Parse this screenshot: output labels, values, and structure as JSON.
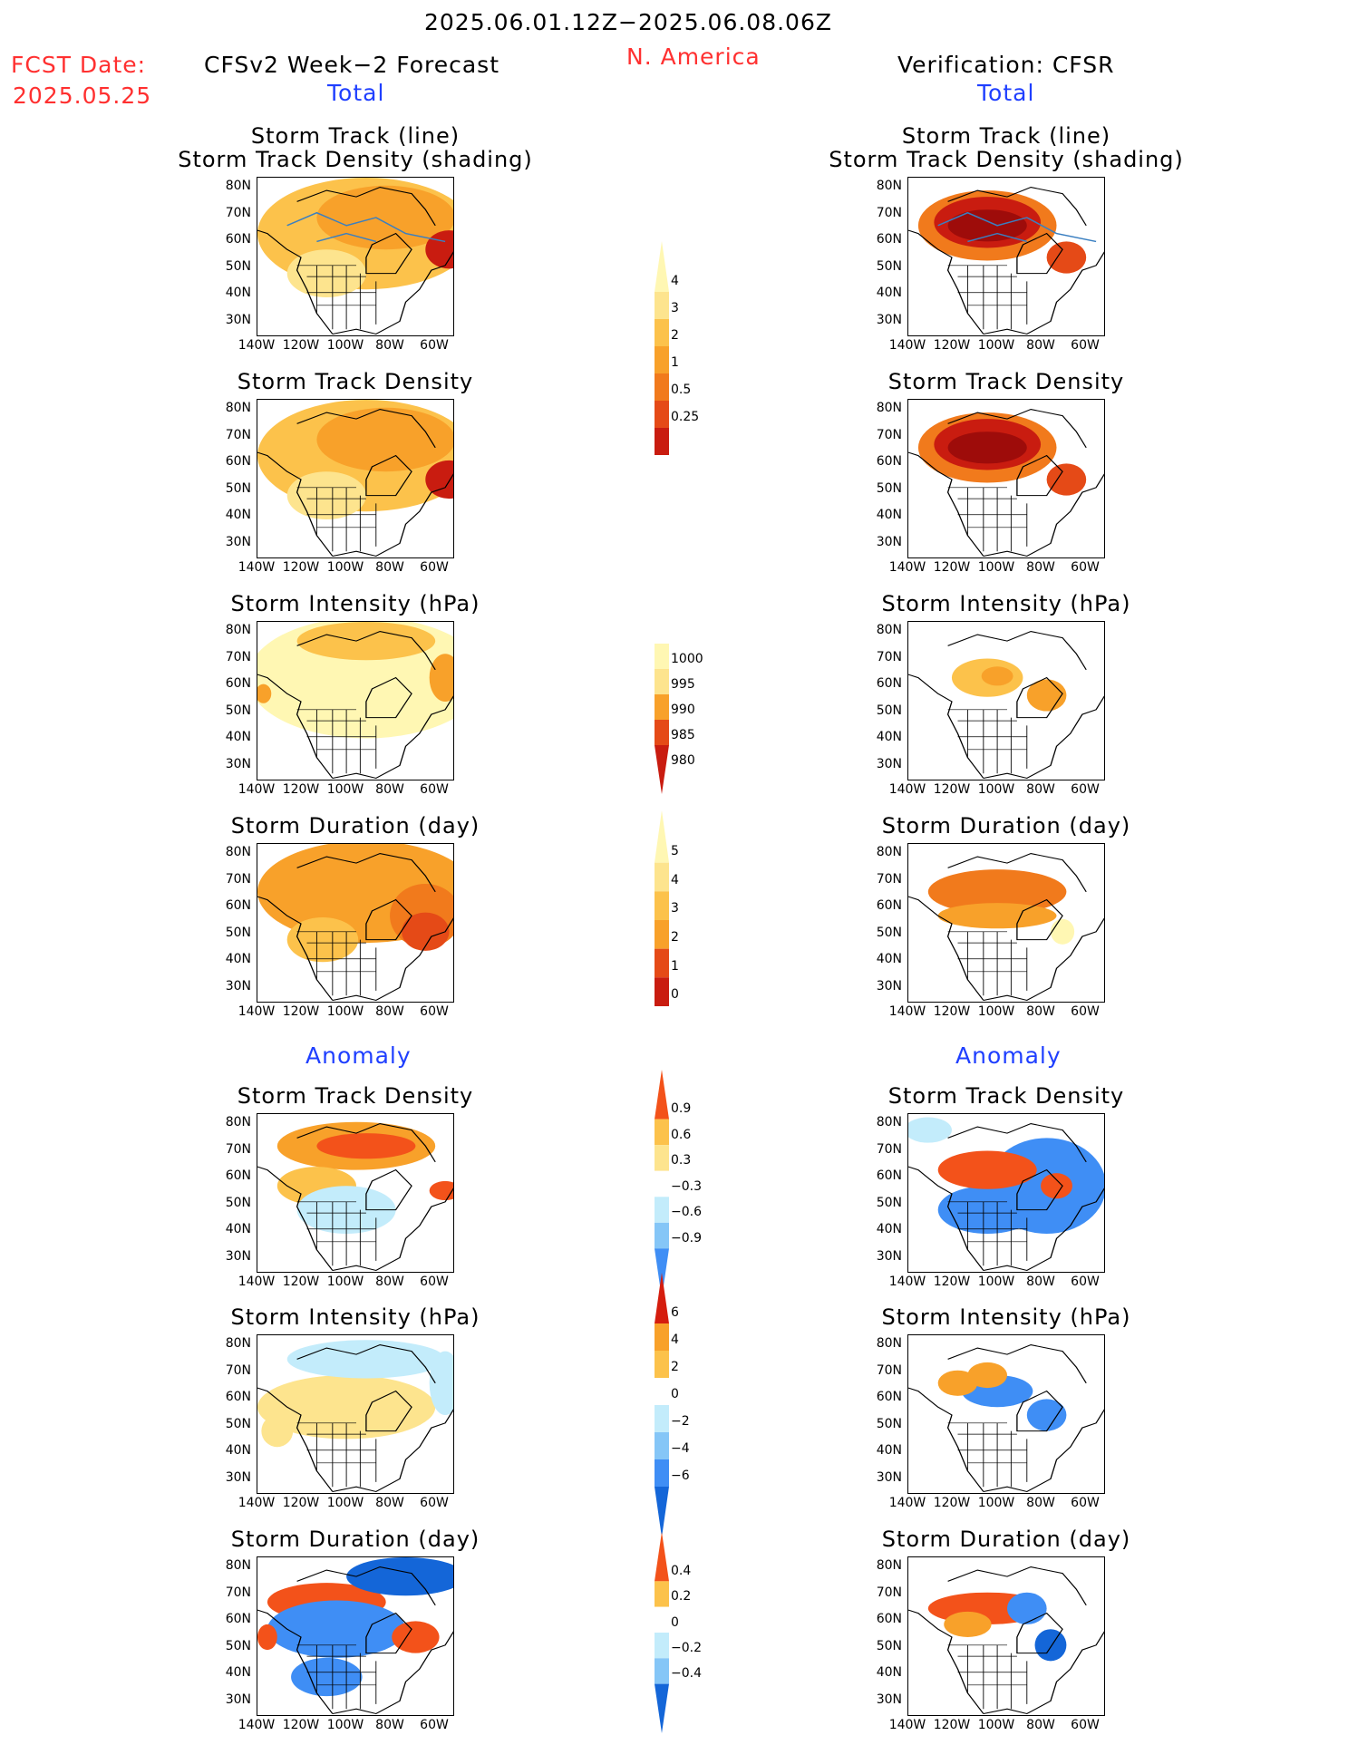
{
  "header": {
    "period": "2025.06.01.12Z−2025.06.08.06Z",
    "region": "N. America",
    "fcst_label": "FCST Date:",
    "fcst_date": "2025.05.25",
    "left_title": "CFSv2 Week−2 Forecast",
    "right_title": "Verification: CFSR",
    "total_label": "Total",
    "anomaly_label": "Anomaly"
  },
  "axes": {
    "lat_ticks": [
      "80N",
      "70N",
      "60N",
      "50N",
      "40N",
      "30N"
    ],
    "lon_ticks": [
      "140W",
      "120W",
      "100W",
      "80W",
      "60W"
    ]
  },
  "colors": {
    "total": [
      "#fff7b3",
      "#fde48e",
      "#fcc24b",
      "#f8a12a",
      "#f17a1c",
      "#e54a17",
      "#c91c10",
      "#9e0c0a"
    ],
    "anomaly": [
      "#1466d8",
      "#3f8ef5",
      "#85c6f7",
      "#c3ecfb",
      "#ffffff",
      "#fde48e",
      "#fcc24b",
      "#f8a12a",
      "#f3521a",
      "#d51d0e"
    ]
  },
  "chart_data": [
    {
      "type": "heatmap",
      "name": "forecast-total-track",
      "title": "Storm Track (line)",
      "subtitle": "Storm Track Density (shading)",
      "panel": "CFSv2 Week-2 Forecast / Total",
      "pattern": "broad moderate density over Canada 45N-75N, max near 50N 55W"
    },
    {
      "type": "heatmap",
      "name": "forecast-total-density",
      "title": "Storm Track Density",
      "panel": "CFSv2 Week-2 Forecast / Total"
    },
    {
      "type": "heatmap",
      "name": "forecast-total-intensity",
      "title": "Storm Intensity (hPa)",
      "panel": "CFSv2 Week-2 Forecast / Total"
    },
    {
      "type": "heatmap",
      "name": "forecast-total-duration",
      "title": "Storm Duration (day)",
      "panel": "CFSv2 Week-2 Forecast / Total"
    },
    {
      "type": "heatmap",
      "name": "forecast-anom-density",
      "title": "Storm Track Density",
      "panel": "CFSv2 Week-2 Forecast / Anomaly"
    },
    {
      "type": "heatmap",
      "name": "forecast-anom-intensity",
      "title": "Storm Intensity (hPa)",
      "panel": "CFSv2 Week-2 Forecast / Anomaly"
    },
    {
      "type": "heatmap",
      "name": "forecast-anom-duration",
      "title": "Storm Duration (day)",
      "panel": "CFSv2 Week-2 Forecast / Anomaly"
    },
    {
      "type": "heatmap",
      "name": "verif-total-track",
      "title": "Storm Track (line)",
      "subtitle": "Storm Track Density (shading)",
      "panel": "Verification: CFSR / Total",
      "pattern": "strong max centred near 60N 100W and secondary near 47N 62W"
    },
    {
      "type": "heatmap",
      "name": "verif-total-density",
      "title": "Storm Track Density",
      "panel": "Verification: CFSR / Total"
    },
    {
      "type": "heatmap",
      "name": "verif-total-intensity",
      "title": "Storm Intensity (hPa)",
      "panel": "Verification: CFSR / Total"
    },
    {
      "type": "heatmap",
      "name": "verif-total-duration",
      "title": "Storm Duration (day)",
      "panel": "Verification: CFSR / Total"
    },
    {
      "type": "heatmap",
      "name": "verif-anom-density",
      "title": "Storm Track Density",
      "panel": "Verification: CFSR / Anomaly"
    },
    {
      "type": "heatmap",
      "name": "verif-anom-intensity",
      "title": "Storm Intensity (hPa)",
      "panel": "Verification: CFSR / Anomaly"
    },
    {
      "type": "heatmap",
      "name": "verif-anom-duration",
      "title": "Storm Duration (day)",
      "panel": "Verification: CFSR / Anomaly"
    }
  ],
  "colorbars": [
    {
      "name": "track-density-total",
      "labels": [
        "4",
        "3",
        "2",
        "1",
        "0.5",
        "0.25"
      ]
    },
    {
      "name": "intensity-total",
      "labels": [
        "1000",
        "995",
        "990",
        "985",
        "980"
      ]
    },
    {
      "name": "duration-total",
      "labels": [
        "5",
        "4",
        "3",
        "2",
        "1",
        "0"
      ]
    },
    {
      "name": "track-density-anomaly",
      "labels": [
        "0.9",
        "0.6",
        "0.3",
        "−0.3",
        "−0.6",
        "−0.9"
      ]
    },
    {
      "name": "intensity-anomaly",
      "labels": [
        "6",
        "4",
        "2",
        "0",
        "−2",
        "−4",
        "−6"
      ]
    },
    {
      "name": "duration-anomaly",
      "labels": [
        "0.4",
        "0.2",
        "0",
        "−0.2",
        "−0.4"
      ]
    }
  ]
}
